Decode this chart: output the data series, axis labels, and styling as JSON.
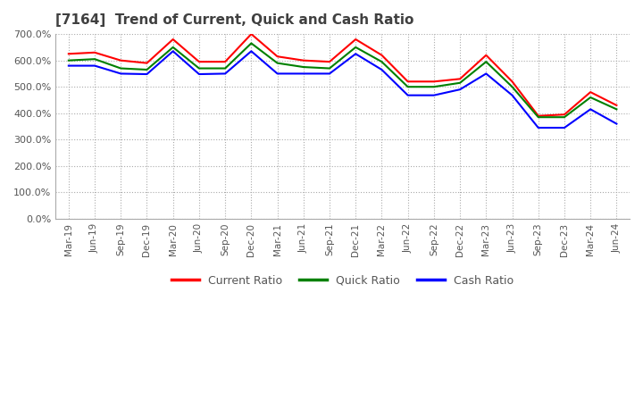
{
  "title": "[7164]  Trend of Current, Quick and Cash Ratio",
  "x_labels": [
    "Mar-19",
    "Jun-19",
    "Sep-19",
    "Dec-19",
    "Mar-20",
    "Jun-20",
    "Sep-20",
    "Dec-20",
    "Mar-21",
    "Jun-21",
    "Sep-21",
    "Dec-21",
    "Mar-22",
    "Jun-22",
    "Sep-22",
    "Dec-22",
    "Mar-23",
    "Jun-23",
    "Sep-23",
    "Dec-23",
    "Mar-24",
    "Jun-24"
  ],
  "current_ratio": [
    625,
    630,
    600,
    590,
    680,
    595,
    595,
    700,
    615,
    600,
    595,
    680,
    620,
    520,
    520,
    530,
    620,
    520,
    390,
    395,
    480,
    430
  ],
  "quick_ratio": [
    600,
    605,
    570,
    565,
    650,
    570,
    570,
    665,
    590,
    575,
    570,
    650,
    595,
    500,
    500,
    515,
    595,
    500,
    385,
    385,
    460,
    415
  ],
  "cash_ratio": [
    580,
    580,
    550,
    548,
    635,
    548,
    550,
    635,
    550,
    550,
    550,
    625,
    565,
    468,
    468,
    490,
    550,
    468,
    345,
    345,
    415,
    360
  ],
  "ylim": [
    0,
    700
  ],
  "yticks": [
    0,
    100,
    200,
    300,
    400,
    500,
    600,
    700
  ],
  "current_color": "#FF0000",
  "quick_color": "#008000",
  "cash_color": "#0000FF",
  "bg_color": "#FFFFFF",
  "grid_color": "#AAAAAA",
  "title_color": "#404040",
  "legend_labels": [
    "Current Ratio",
    "Quick Ratio",
    "Cash Ratio"
  ]
}
